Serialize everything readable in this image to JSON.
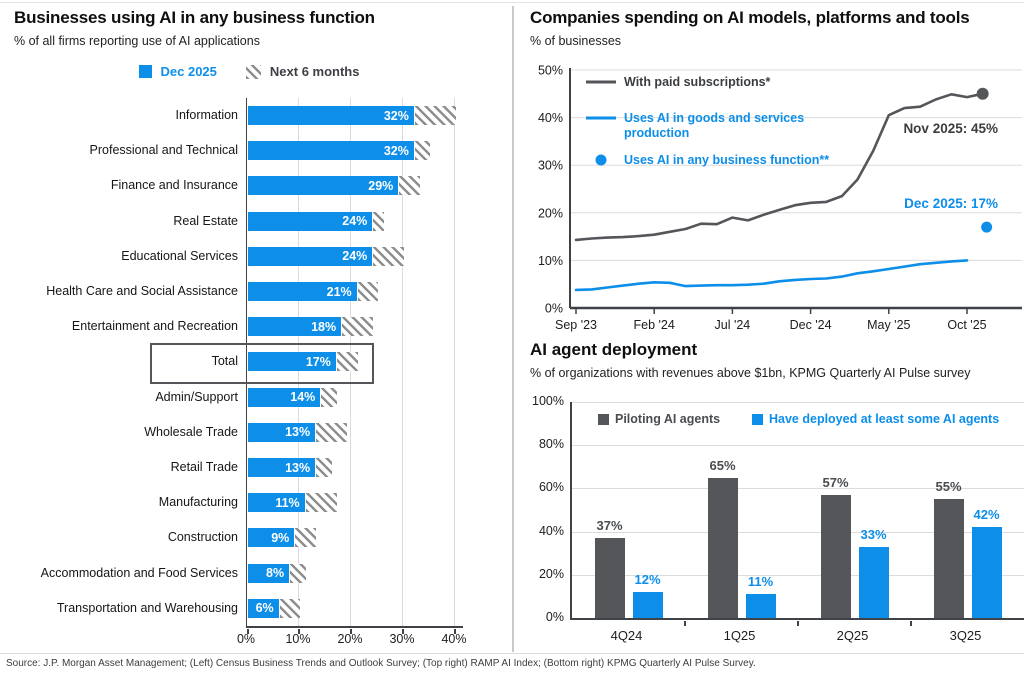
{
  "footer": {
    "source": "Source: J.P. Morgan Asset Management; (Left) Census Business Trends and Outlook Survey; (Top right) RAMP AI Index; (Bottom right) KPMG Quarterly AI Pulse Survey."
  },
  "colors": {
    "blue": "#0d8ee9",
    "dark_gray": "#54565a",
    "grid": "#dcdcdc",
    "axis": "#3f4246"
  },
  "chart_data": [
    {
      "type": "bar",
      "orientation": "horizontal",
      "title": "Businesses using AI in any business function",
      "subtitle": "% of all firms reporting use of AI applications",
      "legend": [
        {
          "label": "Dec 2025",
          "style": "solid",
          "color": "#0d8ee9"
        },
        {
          "label": "Next 6 months",
          "style": "hatch"
        }
      ],
      "xlim": [
        0,
        41.5
      ],
      "xticks": [
        0,
        10,
        20,
        30,
        40
      ],
      "xtick_labels": [
        "0%",
        "10%",
        "20%",
        "30%",
        "40%"
      ],
      "highlighted_category": "Total",
      "value_suffix": "%",
      "rows": [
        {
          "category": "Information",
          "dec_2025": 32,
          "next_6_months_end": 40
        },
        {
          "category": "Professional and Technical",
          "dec_2025": 32,
          "next_6_months_end": 35
        },
        {
          "category": "Finance and Insurance",
          "dec_2025": 29,
          "next_6_months_end": 33
        },
        {
          "category": "Real Estate",
          "dec_2025": 24,
          "next_6_months_end": 26
        },
        {
          "category": "Educational Services",
          "dec_2025": 24,
          "next_6_months_end": 30
        },
        {
          "category": "Health Care and Social Assistance",
          "dec_2025": 21,
          "next_6_months_end": 25
        },
        {
          "category": "Entertainment and Recreation",
          "dec_2025": 18,
          "next_6_months_end": 24
        },
        {
          "category": "Total",
          "dec_2025": 17,
          "next_6_months_end": 21,
          "boxed": true
        },
        {
          "category": "Admin/Support",
          "dec_2025": 14,
          "next_6_months_end": 17
        },
        {
          "category": "Wholesale Trade",
          "dec_2025": 13,
          "next_6_months_end": 19
        },
        {
          "category": "Retail Trade",
          "dec_2025": 13,
          "next_6_months_end": 16
        },
        {
          "category": "Manufacturing",
          "dec_2025": 11,
          "next_6_months_end": 17
        },
        {
          "category": "Construction",
          "dec_2025": 9,
          "next_6_months_end": 13
        },
        {
          "category": "Accommodation and Food Services",
          "dec_2025": 8,
          "next_6_months_end": 11
        },
        {
          "category": "Transportation and Warehousing",
          "dec_2025": 6,
          "next_6_months_end": 10
        }
      ]
    },
    {
      "type": "line",
      "title": "Companies spending on AI models, platforms and tools",
      "subtitle": "% of businesses",
      "ylim": [
        0,
        50
      ],
      "yticks": [
        0,
        10,
        20,
        30,
        40,
        50
      ],
      "x_tick_labels": [
        "Sep '23",
        "Feb '24",
        "Jul '24",
        "Dec '24",
        "May '25",
        "Oct '25"
      ],
      "x_tick_months": [
        0,
        5,
        10,
        15,
        20,
        25
      ],
      "series": [
        {
          "name": "With paid subscriptions*",
          "display_lines": [
            "With paid subscriptions*"
          ],
          "color": "#54565a",
          "end_dot": true,
          "values": [
            14.3,
            14.6,
            14.8,
            14.9,
            15.1,
            15.4,
            16.0,
            16.6,
            17.7,
            17.6,
            19.0,
            18.4,
            19.6,
            20.6,
            21.6,
            22.1,
            22.3,
            23.5,
            27.0,
            33.0,
            40.5,
            42.0,
            42.3,
            43.8,
            44.9,
            44.3,
            45.0
          ]
        },
        {
          "name": "Uses AI in goods and services production",
          "display_lines": [
            "Uses AI in goods and services",
            "production"
          ],
          "color": "#0d8ee9",
          "end_dot": false,
          "values": [
            3.8,
            3.9,
            4.3,
            4.7,
            5.1,
            5.4,
            5.3,
            4.6,
            4.7,
            4.8,
            4.8,
            4.9,
            5.1,
            5.6,
            5.9,
            6.1,
            6.2,
            6.6,
            7.3,
            7.7,
            8.2,
            8.7,
            9.2,
            9.5,
            9.8,
            10.0
          ]
        }
      ],
      "point_series": {
        "name": "Uses AI in any business function**",
        "display_lines": [
          "Uses AI in any business function**"
        ],
        "color": "#0d8ee9",
        "month": 26,
        "value": 17
      },
      "annotations": [
        {
          "text": "Nov 2025: 45%",
          "color": "#3a3d40"
        },
        {
          "text": "Dec 2025: 17%",
          "color": "#0d8ee9"
        }
      ]
    },
    {
      "type": "bar",
      "orientation": "vertical",
      "title": "AI agent deployment",
      "subtitle": "% of organizations with revenues above $1bn, KPMG Quarterly AI Pulse survey",
      "categories": [
        "4Q24",
        "1Q25",
        "2Q25",
        "3Q25"
      ],
      "series": [
        {
          "name": "Piloting AI agents",
          "color": "#54565a",
          "label_color": "#4a4d50",
          "values": [
            37,
            65,
            57,
            55
          ]
        },
        {
          "name": "Have deployed at least some AI agents",
          "color": "#0d8ee9",
          "label_color": "#0d8ee9",
          "values": [
            12,
            11,
            33,
            42
          ]
        }
      ],
      "ylim": [
        0,
        100
      ],
      "yticks": [
        0,
        20,
        40,
        60,
        80,
        100
      ],
      "value_suffix": "%"
    }
  ]
}
